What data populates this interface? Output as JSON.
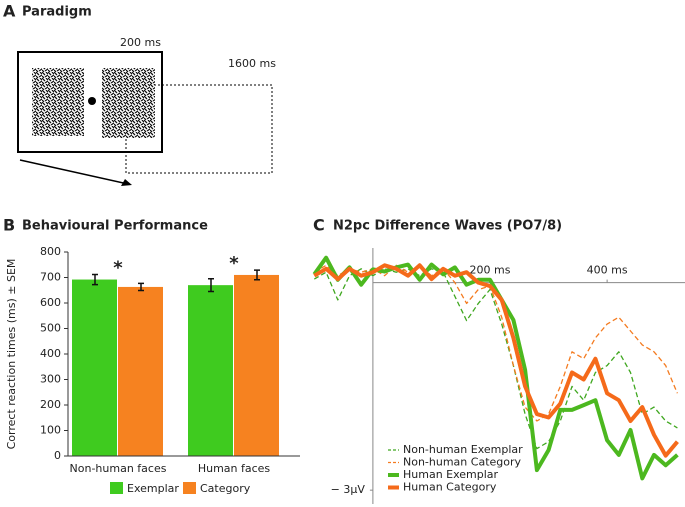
{
  "panel_a": {
    "letter": "A",
    "title": "Paradigm",
    "onset": "200 ms",
    "duration": "1600 ms"
  },
  "chart_data": [
    {
      "type": "bar",
      "panel": "B",
      "title": "Behavioural Performance",
      "ylabel": "Correct reaction times (ms) ± SEM",
      "categories": [
        "Non-human faces",
        "Human faces"
      ],
      "series": [
        {
          "name": "Exemplar",
          "color": "#3fcb1f",
          "values": [
            692,
            670
          ],
          "errors": [
            20,
            25
          ]
        },
        {
          "name": "Category",
          "color": "#f68220",
          "values": [
            663,
            710
          ],
          "errors": [
            14,
            19
          ]
        }
      ],
      "annotations": [
        "*",
        "*"
      ],
      "ylim": [
        0,
        800
      ],
      "yticks": [
        0,
        100,
        200,
        300,
        400,
        500,
        600,
        700,
        800
      ]
    },
    {
      "type": "line",
      "panel": "C",
      "title": "N2pc Difference Waves (PO7/8)",
      "x": [
        -100,
        -80,
        -60,
        -40,
        -20,
        0,
        20,
        40,
        60,
        80,
        100,
        120,
        140,
        160,
        180,
        200,
        220,
        240,
        260,
        280,
        300,
        320,
        340,
        360,
        380,
        400,
        420,
        440,
        460,
        480,
        500,
        520
      ],
      "series": [
        {
          "name": "Non-human Exemplar",
          "color": "#3fa71f",
          "dashed": true,
          "width": 1.3,
          "values": [
            0.05,
            0.15,
            -0.25,
            0.1,
            0.2,
            0.1,
            0.2,
            0.15,
            0.2,
            0.1,
            0.2,
            0.15,
            -0.2,
            -0.55,
            -0.3,
            -0.1,
            -0.6,
            -1.2,
            -1.9,
            -2.4,
            -2.3,
            -2.0,
            -1.5,
            -1.7,
            -1.3,
            -1.2,
            -1.0,
            -1.3,
            -1.9,
            -1.8,
            -2.0,
            -2.1
          ]
        },
        {
          "name": "Non-human Category",
          "color": "#f47b20",
          "dashed": true,
          "width": 1.3,
          "values": [
            0.15,
            0.25,
            0.1,
            0.2,
            0.15,
            0.2,
            0.1,
            0.25,
            0.15,
            0.25,
            0.1,
            0.2,
            0.0,
            -0.3,
            -0.1,
            -0.05,
            -0.5,
            -1.2,
            -1.8,
            -2.0,
            -1.9,
            -1.5,
            -1.0,
            -1.1,
            -0.8,
            -0.6,
            -0.5,
            -0.7,
            -0.9,
            -1.0,
            -1.2,
            -1.6
          ]
        },
        {
          "name": "Human Exemplar",
          "color": "#4cb81f",
          "dashed": false,
          "width": 4,
          "values": [
            0.12,
            0.36,
            0.04,
            0.22,
            -0.03,
            0.19,
            0.16,
            0.22,
            0.26,
            0.04,
            0.26,
            0.12,
            0.22,
            -0.03,
            0.04,
            0.04,
            -0.25,
            -0.54,
            -1.26,
            -2.71,
            -2.42,
            -1.84,
            -1.84,
            -1.77,
            -1.7,
            -2.28,
            -2.49,
            -2.13,
            -2.83,
            -2.49,
            -2.64,
            -2.49
          ]
        },
        {
          "name": "Human Category",
          "color": "#f56a1a",
          "dashed": false,
          "width": 4,
          "values": [
            0.1,
            0.2,
            0.05,
            0.2,
            0.1,
            0.15,
            0.25,
            0.2,
            0.1,
            0.25,
            0.05,
            0.2,
            0.1,
            0.15,
            0.0,
            -0.05,
            -0.25,
            -0.8,
            -1.5,
            -1.9,
            -1.95,
            -1.75,
            -1.3,
            -1.4,
            -1.1,
            -1.6,
            -1.7,
            -2.0,
            -1.8,
            -2.2,
            -2.5,
            -2.3
          ]
        }
      ],
      "xlim": [
        -104,
        533
      ],
      "xticks": [
        {
          "value": 200,
          "label": "200 ms"
        },
        {
          "value": 400,
          "label": "400 ms"
        }
      ],
      "ylim": [
        -3.2,
        0.5
      ],
      "yticks": [
        {
          "value": -3,
          "label": "− 3μV"
        }
      ]
    }
  ]
}
